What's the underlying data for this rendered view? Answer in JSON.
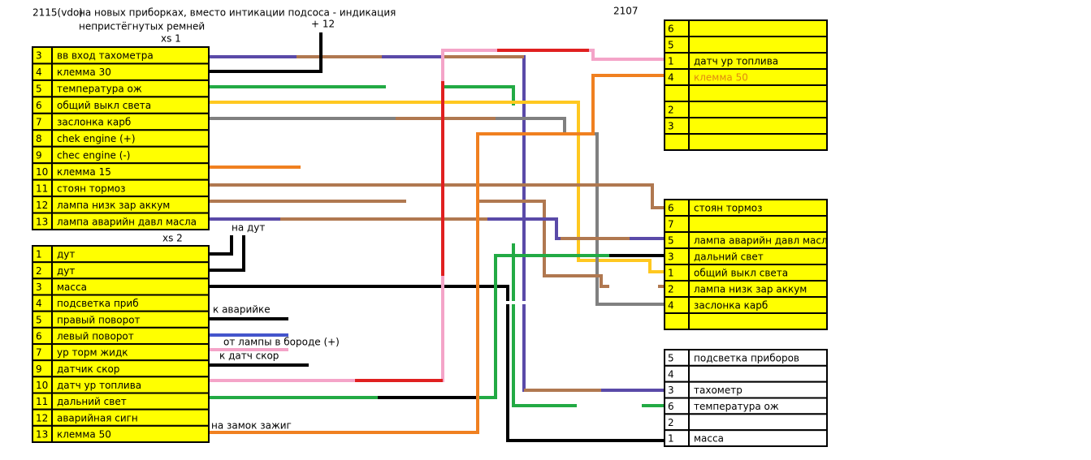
{
  "header": {
    "model": "2115(vdo)",
    "note": [
      "на новых приборках, вместо интикации подсоса - индикация",
      "непристёгнутых ремней"
    ],
    "plus12": "+ 12",
    "model2": "2107"
  },
  "connectors": [
    {
      "name": "xs 1",
      "fill": "#ffff00",
      "rows": [
        {
          "pin": "3",
          "label": "вв вход тахометра"
        },
        {
          "pin": "4",
          "label": "клемма 30"
        },
        {
          "pin": "5",
          "label": "температура ож"
        },
        {
          "pin": "6",
          "label": "общий выкл света"
        },
        {
          "pin": "7",
          "label": "заслонка карб"
        },
        {
          "pin": "8",
          "label": "chek engine (+)"
        },
        {
          "pin": "9",
          "label": "chec engine (-)"
        },
        {
          "pin": "10",
          "label": "клемма 15"
        },
        {
          "pin": "11",
          "label": "стоян тормоз"
        },
        {
          "pin": "12",
          "label": "лампа низк зар аккум"
        },
        {
          "pin": "13",
          "label": "лампа аварийн давл масла"
        }
      ]
    },
    {
      "name": "xs 2",
      "fill": "#ffff00",
      "rows": [
        {
          "pin": "1",
          "label": "дут"
        },
        {
          "pin": "2",
          "label": "дут"
        },
        {
          "pin": "3",
          "label": "масса"
        },
        {
          "pin": "4",
          "label": "подсветка приб"
        },
        {
          "pin": "5",
          "label": "правый поворот"
        },
        {
          "pin": "6",
          "label": "левый поворот"
        },
        {
          "pin": "7",
          "label": "ур торм жидк"
        },
        {
          "pin": "9",
          "label": "датчик скор"
        },
        {
          "pin": "10",
          "label": "датч ур топлива"
        },
        {
          "pin": "11",
          "label": "дальний свет"
        },
        {
          "pin": "12",
          "label": "аварийная сигн"
        },
        {
          "pin": "13",
          "label": "клемма 50"
        }
      ]
    },
    {
      "fill": "#ffff00",
      "rows": [
        {
          "pin": "6",
          "label": null
        },
        {
          "pin": "5",
          "label": null
        },
        {
          "pin": "1",
          "label": "датч ур топлива"
        },
        {
          "pin": "4",
          "label": "клемма 50",
          "color": "#e08a10"
        },
        {
          "pin": null,
          "label": null
        },
        {
          "pin": "2",
          "label": null
        },
        {
          "pin": "3",
          "label": null
        },
        {
          "pin": null,
          "label": null
        }
      ]
    },
    {
      "fill": "#ffff00",
      "rows": [
        {
          "pin": "6",
          "label": "стоян тормоз"
        },
        {
          "pin": "7",
          "label": null
        },
        {
          "pin": "5",
          "label": "лампа аварийн давл масл"
        },
        {
          "pin": "3",
          "label": "дальний свет"
        },
        {
          "pin": "1",
          "label": "общий выкл света"
        },
        {
          "pin": "2",
          "label": "лампа низк зар аккум"
        },
        {
          "pin": "4",
          "label": "заслонка карб"
        },
        {
          "pin": null,
          "label": null
        }
      ]
    },
    {
      "fill": "#ffffff",
      "rows": [
        {
          "pin": "5",
          "label": "подсветка приборов"
        },
        {
          "pin": "4",
          "label": null
        },
        {
          "pin": "3",
          "label": "тахометр"
        },
        {
          "pin": "6",
          "label": "температура ож"
        },
        {
          "pin": "2",
          "label": null
        },
        {
          "pin": "1",
          "label": "масса"
        }
      ]
    }
  ],
  "annotations": [
    "на дут",
    "к аварийке",
    "от лампы в бороде (+)",
    "к датч скор",
    "на замок зажиг"
  ]
}
